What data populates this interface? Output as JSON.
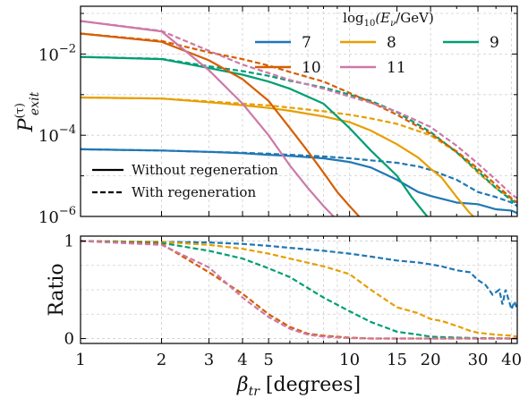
{
  "chart_data": [
    {
      "type": "line",
      "ylabel_main": "P",
      "ylabel_sup": "(τ)",
      "ylabel_sub": "exit",
      "x_scale": "log",
      "y_scale": "log",
      "xlim": [
        1,
        42
      ],
      "ylim": [
        1e-06,
        0.15
      ],
      "y_ticks": [
        {
          "value": 1e-06,
          "base": "10",
          "exp": "−6"
        },
        {
          "value": 0.0001,
          "base": "10",
          "exp": "−4"
        },
        {
          "value": 0.01,
          "base": "10",
          "exp": "−2"
        }
      ],
      "grid": true,
      "legend_energy": {
        "title_prefix": "log",
        "title_sub": "10",
        "title_rest": "(E",
        "title_sub2": "ν",
        "title_end": "/GeV)",
        "placement": "top-right",
        "entries": [
          "7",
          "8",
          "9",
          "10",
          "11"
        ]
      },
      "legend_style": {
        "placement": "lower-left",
        "solid_label": "Without regeneration",
        "dashed_label": "With regeneration"
      },
      "series": [
        {
          "name": "7",
          "color": "#1f77b4",
          "without": [
            [
              1,
              4.5e-05
            ],
            [
              2,
              4.2e-05
            ],
            [
              3,
              3.9e-05
            ],
            [
              4,
              3.6e-05
            ],
            [
              5,
              3.3e-05
            ],
            [
              6,
              3.1e-05
            ],
            [
              8,
              2.7e-05
            ],
            [
              10,
              2.2e-05
            ],
            [
              12,
              1.6e-05
            ],
            [
              15,
              8e-06
            ],
            [
              18,
              4e-06
            ],
            [
              20,
              3.2e-06
            ],
            [
              25,
              2.2e-06
            ],
            [
              30,
              2e-06
            ],
            [
              35,
              1.5e-06
            ],
            [
              40,
              1.4e-06
            ],
            [
              42,
              1.2e-06
            ]
          ],
          "with": [
            [
              1,
              4.5e-05
            ],
            [
              2,
              4.2e-05
            ],
            [
              3,
              3.9e-05
            ],
            [
              4,
              3.7e-05
            ],
            [
              5,
              3.5e-05
            ],
            [
              6,
              3.3e-05
            ],
            [
              8,
              3e-05
            ],
            [
              10,
              2.7e-05
            ],
            [
              12,
              2.4e-05
            ],
            [
              15,
              2.1e-05
            ],
            [
              18,
              1.7e-05
            ],
            [
              20,
              1.4e-05
            ],
            [
              25,
              8e-06
            ],
            [
              30,
              4e-06
            ],
            [
              35,
              3e-06
            ],
            [
              40,
              2.2e-06
            ],
            [
              42,
              1.8e-06
            ]
          ]
        },
        {
          "name": "8",
          "color": "#e69f00",
          "without": [
            [
              1,
              0.00085
            ],
            [
              2,
              0.0008
            ],
            [
              3,
              0.00065
            ],
            [
              4,
              0.00055
            ],
            [
              5,
              0.00047
            ],
            [
              6,
              0.0004
            ],
            [
              8,
              0.00029
            ],
            [
              10,
              0.00021
            ],
            [
              12,
              0.00013
            ],
            [
              15,
              6e-05
            ],
            [
              18,
              2.8e-05
            ],
            [
              20,
              1.5e-05
            ],
            [
              22,
              9e-06
            ],
            [
              25,
              3e-06
            ],
            [
              28,
              1.2e-06
            ],
            [
              30,
              8e-07
            ]
          ],
          "with": [
            [
              1,
              0.00085
            ],
            [
              2,
              0.0008
            ],
            [
              3,
              0.00068
            ],
            [
              4,
              0.0006
            ],
            [
              5,
              0.00054
            ],
            [
              6,
              0.00048
            ],
            [
              8,
              0.00039
            ],
            [
              10,
              0.00032
            ],
            [
              12,
              0.00026
            ],
            [
              15,
              0.00019
            ],
            [
              20,
              0.0001
            ],
            [
              25,
              3.8e-05
            ],
            [
              30,
              1.2e-05
            ],
            [
              35,
              5e-06
            ],
            [
              40,
              2.7e-06
            ],
            [
              42,
              2.2e-06
            ]
          ]
        },
        {
          "name": "9",
          "color": "#009e73",
          "without": [
            [
              1,
              0.0085
            ],
            [
              2,
              0.0075
            ],
            [
              3,
              0.0045
            ],
            [
              4,
              0.0031
            ],
            [
              5,
              0.0021
            ],
            [
              6,
              0.0014
            ],
            [
              8,
              0.0006
            ],
            [
              10,
              0.00015
            ],
            [
              12,
              4.2e-05
            ],
            [
              15,
              1e-05
            ],
            [
              17,
              3e-06
            ],
            [
              19,
              1.2e-06
            ],
            [
              20,
              8e-07
            ]
          ],
          "with": [
            [
              1,
              0.0085
            ],
            [
              2,
              0.0076
            ],
            [
              3,
              0.005
            ],
            [
              4,
              0.0038
            ],
            [
              5,
              0.0029
            ],
            [
              6,
              0.0022
            ],
            [
              8,
              0.0015
            ],
            [
              10,
              0.001
            ],
            [
              12,
              0.0007
            ],
            [
              15,
              0.00037
            ],
            [
              20,
              0.00012
            ],
            [
              25,
              3.8e-05
            ],
            [
              30,
              1.3e-05
            ],
            [
              35,
              5e-06
            ],
            [
              40,
              2.5e-06
            ],
            [
              42,
              2e-06
            ]
          ]
        },
        {
          "name": "10",
          "color": "#d55e00",
          "without": [
            [
              1,
              0.032
            ],
            [
              2,
              0.02
            ],
            [
              3,
              0.007
            ],
            [
              4,
              0.0024
            ],
            [
              5,
              0.0007
            ],
            [
              6,
              0.00015
            ],
            [
              7,
              4e-05
            ],
            [
              8,
              1.2e-05
            ],
            [
              9,
              4e-06
            ],
            [
              10,
              1.8e-06
            ],
            [
              11,
              9e-07
            ]
          ],
          "with": [
            [
              1,
              0.032
            ],
            [
              2,
              0.021
            ],
            [
              3,
              0.011
            ],
            [
              4,
              0.0075
            ],
            [
              5,
              0.0052
            ],
            [
              6,
              0.0036
            ],
            [
              8,
              0.0021
            ],
            [
              10,
              0.0011
            ],
            [
              12,
              0.00065
            ],
            [
              15,
              0.00032
            ],
            [
              20,
              0.00011
            ],
            [
              25,
              4e-05
            ],
            [
              30,
              1.5e-05
            ],
            [
              35,
              6e-06
            ],
            [
              40,
              2.8e-06
            ],
            [
              42,
              2.2e-06
            ]
          ]
        },
        {
          "name": "11",
          "color": "#cc79a7",
          "without": [
            [
              1,
              0.065
            ],
            [
              2,
              0.036
            ],
            [
              3,
              0.004
            ],
            [
              4,
              0.0006
            ],
            [
              5,
              0.0001
            ],
            [
              6,
              1.8e-05
            ],
            [
              7,
              5e-06
            ],
            [
              8,
              1.8e-06
            ],
            [
              9,
              8e-07
            ]
          ],
          "with": [
            [
              1,
              0.065
            ],
            [
              2,
              0.037
            ],
            [
              3,
              0.012
            ],
            [
              4,
              0.0055
            ],
            [
              5,
              0.0034
            ],
            [
              6,
              0.0023
            ],
            [
              8,
              0.0014
            ],
            [
              10,
              0.0009
            ],
            [
              12,
              0.00063
            ],
            [
              15,
              0.00038
            ],
            [
              20,
              0.00016
            ],
            [
              25,
              5.5e-05
            ],
            [
              30,
              2e-05
            ],
            [
              35,
              8e-06
            ],
            [
              40,
              3.5e-06
            ],
            [
              42,
              2.8e-06
            ]
          ]
        }
      ]
    },
    {
      "type": "line",
      "ylabel": "Ratio",
      "xlabel_main": "β",
      "xlabel_sub": "tr",
      "xlabel_rest": "[degrees]",
      "x_scale": "log",
      "xlim": [
        1,
        42
      ],
      "ylim": [
        -0.05,
        1.05
      ],
      "y_ticks": [
        "0",
        "1"
      ],
      "x_ticks": [
        "1",
        "2",
        "3",
        "4",
        "5",
        "10",
        "15",
        "20",
        "30",
        "40"
      ],
      "grid": true,
      "series": [
        {
          "name": "7",
          "color": "#1f77b4",
          "values": [
            [
              1,
              1.0
            ],
            [
              2,
              0.99
            ],
            [
              3,
              0.985
            ],
            [
              4,
              0.97
            ],
            [
              5,
              0.95
            ],
            [
              6,
              0.93
            ],
            [
              8,
              0.9
            ],
            [
              10,
              0.87
            ],
            [
              12,
              0.84
            ],
            [
              15,
              0.8
            ],
            [
              18,
              0.78
            ],
            [
              20,
              0.76
            ],
            [
              22,
              0.74
            ],
            [
              25,
              0.7
            ],
            [
              28,
              0.68
            ],
            [
              30,
              0.6
            ],
            [
              32,
              0.55
            ],
            [
              34,
              0.45
            ],
            [
              36,
              0.5
            ],
            [
              37,
              0.35
            ],
            [
              38,
              0.5
            ],
            [
              40,
              0.3
            ],
            [
              41,
              0.38
            ],
            [
              42,
              0.3
            ]
          ]
        },
        {
          "name": "8",
          "color": "#e69f00",
          "values": [
            [
              1,
              1.0
            ],
            [
              2,
              0.99
            ],
            [
              3,
              0.96
            ],
            [
              4,
              0.92
            ],
            [
              5,
              0.87
            ],
            [
              6,
              0.82
            ],
            [
              8,
              0.74
            ],
            [
              10,
              0.66
            ],
            [
              12,
              0.5
            ],
            [
              15,
              0.32
            ],
            [
              18,
              0.26
            ],
            [
              20,
              0.2
            ],
            [
              22,
              0.18
            ],
            [
              25,
              0.13
            ],
            [
              28,
              0.08
            ],
            [
              30,
              0.06
            ],
            [
              35,
              0.04
            ],
            [
              40,
              0.03
            ],
            [
              42,
              0.02
            ]
          ]
        },
        {
          "name": "9",
          "color": "#009e73",
          "values": [
            [
              1,
              1.0
            ],
            [
              2,
              0.98
            ],
            [
              3,
              0.9
            ],
            [
              4,
              0.82
            ],
            [
              5,
              0.72
            ],
            [
              6,
              0.63
            ],
            [
              8,
              0.42
            ],
            [
              10,
              0.28
            ],
            [
              12,
              0.17
            ],
            [
              15,
              0.07
            ],
            [
              18,
              0.04
            ],
            [
              20,
              0.02
            ],
            [
              25,
              0.01
            ],
            [
              30,
              0.005
            ],
            [
              40,
              0.0
            ],
            [
              42,
              0.0
            ]
          ]
        },
        {
          "name": "10",
          "color": "#d55e00",
          "values": [
            [
              1,
              1.0
            ],
            [
              2,
              0.97
            ],
            [
              3,
              0.68
            ],
            [
              4,
              0.46
            ],
            [
              5,
              0.25
            ],
            [
              6,
              0.12
            ],
            [
              7,
              0.05
            ],
            [
              8,
              0.03
            ],
            [
              10,
              0.01
            ],
            [
              12,
              0.0
            ],
            [
              42,
              0.0
            ]
          ]
        },
        {
          "name": "11",
          "color": "#cc79a7",
          "values": [
            [
              1,
              1.0
            ],
            [
              2,
              0.96
            ],
            [
              3,
              0.73
            ],
            [
              4,
              0.42
            ],
            [
              5,
              0.22
            ],
            [
              6,
              0.1
            ],
            [
              7,
              0.04
            ],
            [
              8,
              0.02
            ],
            [
              10,
              0.005
            ],
            [
              12,
              0.0
            ],
            [
              42,
              0.0
            ]
          ]
        }
      ]
    }
  ]
}
